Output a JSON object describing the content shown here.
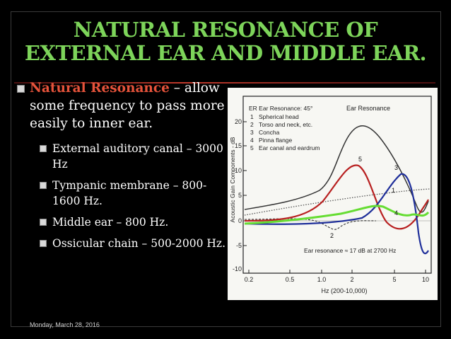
{
  "title": {
    "line1": "NATURAL RESONANCE OF",
    "line2": "EXTERNAL EAR AND MIDDLE EAR."
  },
  "main_bullet": {
    "term": "Natural Resonance",
    "text": " – allow some frequency to pass more easily to inner ear."
  },
  "sub_bullets": [
    "External auditory canal – 3000 Hz",
    "Tympanic membrane – 800-1600 Hz.",
    "Middle ear – 800 Hz.",
    "Ossicular chain – 500-2000 Hz."
  ],
  "figure": {
    "ylabel": "Acoustic Gain Components - dB",
    "xlabel": "Hz (200-10,000)",
    "header": "ER Ear Resonance: 45°",
    "curve_title": "Ear Resonance",
    "legend": [
      {
        "num": "1",
        "label": "Spherical head"
      },
      {
        "num": "2",
        "label": "Torso and neck, etc."
      },
      {
        "num": "3",
        "label": "Concha"
      },
      {
        "num": "4",
        "label": "Pinna flange"
      },
      {
        "num": "5",
        "label": "Ear canal and eardrum"
      }
    ],
    "annotation": "Ear resonance ≈ 17 dB at 2700 Hz",
    "yticks": [
      "20",
      "15",
      "10",
      "5",
      "0",
      "-5",
      "-10"
    ],
    "xticks": [
      "0.2",
      "0.5",
      "1.0",
      "2",
      "5",
      "10"
    ],
    "curve_numbers": [
      "5",
      "3",
      "1",
      "4",
      "2"
    ],
    "colors": {
      "total": "#333333",
      "canal": "#b82020",
      "concha": "#1f2f9a",
      "pinna": "#66dd33",
      "head": "#555555"
    }
  },
  "footer": {
    "date": "Monday, March 28, 2016"
  }
}
